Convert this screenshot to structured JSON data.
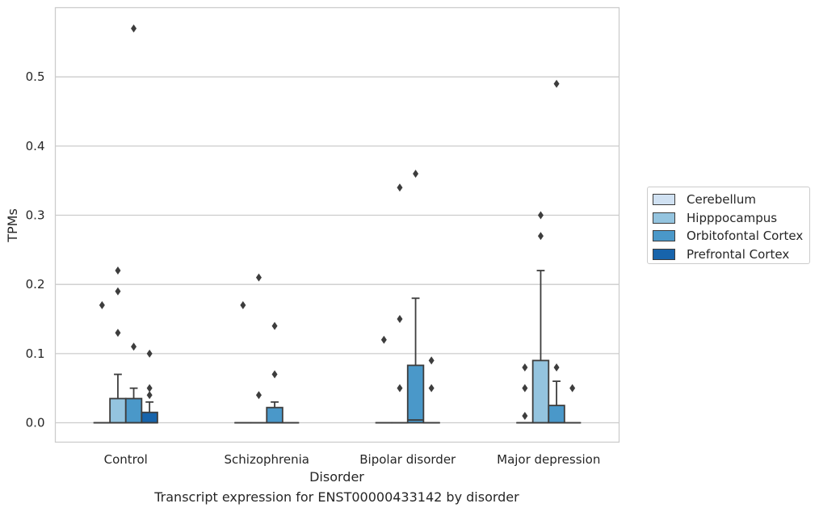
{
  "chart_data": {
    "type": "box",
    "xlabel": "Disorder",
    "ylabel": "TPMs",
    "ylim": [
      -0.028,
      0.6
    ],
    "yticks": [
      0.0,
      0.1,
      0.2,
      0.3,
      0.4,
      0.5
    ],
    "ytick_labels": [
      "0.0",
      "0.1",
      "0.2",
      "0.3",
      "0.4",
      "0.5"
    ],
    "grid": "horizontal",
    "legend_placement": "right",
    "categories": [
      "Control",
      "Schizophrenia",
      "Bipolar disorder",
      "Major depression"
    ],
    "series": [
      {
        "name": "Cerebellum",
        "color": "#d0e1f2",
        "boxes": [
          {
            "q1": 0,
            "median": 0,
            "q3": 0,
            "whisker_low": 0,
            "whisker_high": 0,
            "outliers": [
              0.17
            ]
          },
          {
            "q1": 0,
            "median": 0,
            "q3": 0,
            "whisker_low": 0,
            "whisker_high": 0,
            "outliers": [
              0.17
            ]
          },
          {
            "q1": 0,
            "median": 0,
            "q3": 0,
            "whisker_low": 0,
            "whisker_high": 0,
            "outliers": [
              0.12
            ]
          },
          {
            "q1": 0,
            "median": 0,
            "q3": 0,
            "whisker_low": 0,
            "whisker_high": 0,
            "outliers": [
              0.08,
              0.05,
              0.01
            ]
          }
        ]
      },
      {
        "name": "Hipppocampus",
        "color": "#94c4df",
        "boxes": [
          {
            "q1": 0,
            "median": 0,
            "q3": 0.035,
            "whisker_low": 0,
            "whisker_high": 0.07,
            "outliers": [
              0.22,
              0.19,
              0.13
            ]
          },
          {
            "q1": 0,
            "median": 0,
            "q3": 0,
            "whisker_low": 0,
            "whisker_high": 0,
            "outliers": [
              0.21,
              0.04
            ]
          },
          {
            "q1": 0,
            "median": 0,
            "q3": 0,
            "whisker_low": 0,
            "whisker_high": 0,
            "outliers": [
              0.34,
              0.15,
              0.05
            ]
          },
          {
            "q1": 0,
            "median": 0,
            "q3": 0.09,
            "whisker_low": 0,
            "whisker_high": 0.22,
            "outliers": [
              0.3,
              0.27
            ]
          }
        ]
      },
      {
        "name": "Orbitofontal Cortex",
        "color": "#4a98c9",
        "boxes": [
          {
            "q1": 0,
            "median": 0,
            "q3": 0.035,
            "whisker_low": 0,
            "whisker_high": 0.05,
            "outliers": [
              0.57,
              0.11
            ]
          },
          {
            "q1": 0,
            "median": 0,
            "q3": 0.022,
            "whisker_low": 0,
            "whisker_high": 0.03,
            "outliers": [
              0.14,
              0.07
            ]
          },
          {
            "q1": 0,
            "median": 0.004,
            "q3": 0.083,
            "whisker_low": 0,
            "whisker_high": 0.18,
            "outliers": [
              0.36
            ]
          },
          {
            "q1": 0,
            "median": 0,
            "q3": 0.025,
            "whisker_low": 0,
            "whisker_high": 0.06,
            "outliers": [
              0.49,
              0.08
            ]
          }
        ]
      },
      {
        "name": "Prefrontal Cortex",
        "color": "#1764ab",
        "boxes": [
          {
            "q1": 0,
            "median": 0,
            "q3": 0.015,
            "whisker_low": 0,
            "whisker_high": 0.03,
            "outliers": [
              0.1,
              0.05,
              0.04
            ]
          },
          {
            "q1": 0,
            "median": 0,
            "q3": 0,
            "whisker_low": 0,
            "whisker_high": 0,
            "outliers": []
          },
          {
            "q1": 0,
            "median": 0,
            "q3": 0,
            "whisker_low": 0,
            "whisker_high": 0,
            "outliers": [
              0.09,
              0.05
            ]
          },
          {
            "q1": 0,
            "median": 0,
            "q3": 0,
            "whisker_low": 0,
            "whisker_high": 0,
            "outliers": [
              0.05
            ]
          }
        ]
      }
    ],
    "caption": "Transcript expression for ENST00000433142 by disorder"
  }
}
